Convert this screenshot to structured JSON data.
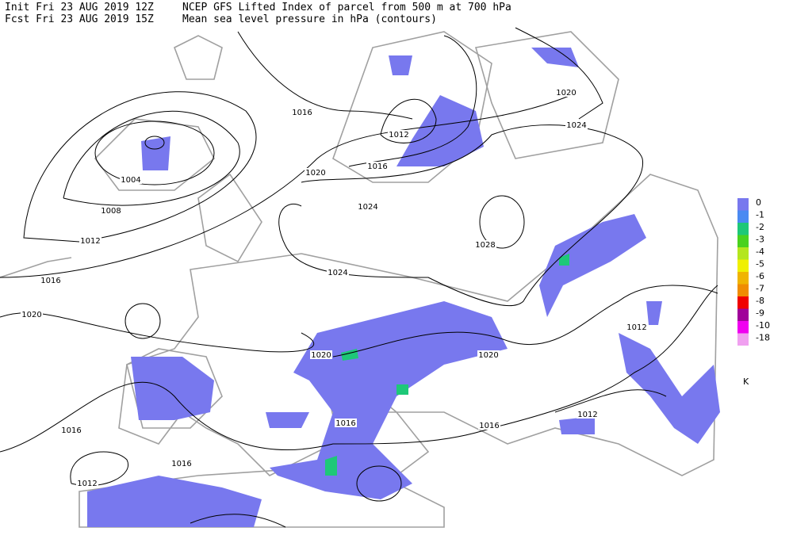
{
  "header": {
    "init": "Init  Fri 23 AUG 2019 12Z",
    "fcst": "Fcst Fri 23 AUG 2019 15Z",
    "title": "NCEP GFS Lifted Index of parcel from 500 m at 700 hPa",
    "subtitle": "Mean sea level pressure in hPa (contours)"
  },
  "contour_labels": [
    "1016",
    "1012",
    "1016",
    "1020",
    "1020",
    "1024",
    "1004",
    "1008",
    "1012",
    "1016",
    "1024",
    "1028",
    "1024",
    "1020",
    "1020",
    "1020",
    "1012",
    "1016",
    "1016",
    "1016",
    "1016",
    "1012",
    "1012"
  ],
  "legend": {
    "labels": [
      "0",
      "-1",
      "-2",
      "-3",
      "-4",
      "-5",
      "-6",
      "-7",
      "-8",
      "-9",
      "-10",
      "-18"
    ],
    "colors": [
      "#7878ee",
      "#4a8af2",
      "#1ec878",
      "#4ad21e",
      "#b4e61e",
      "#f0f000",
      "#f0b400",
      "#f08c00",
      "#f00000",
      "#a0009a",
      "#f000f0",
      "#f0a0f0"
    ],
    "unit": "K"
  }
}
